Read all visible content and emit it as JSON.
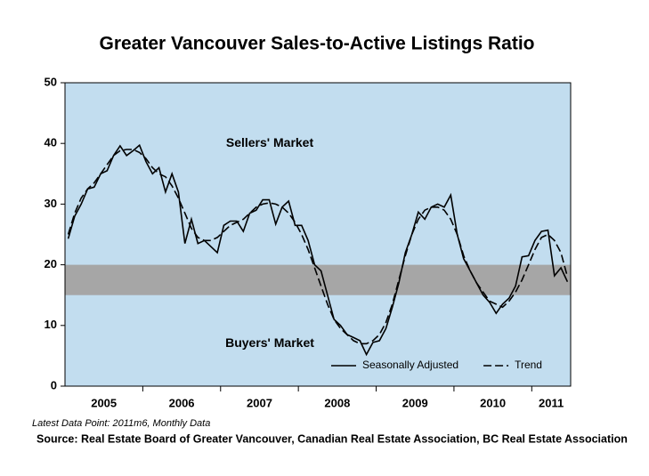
{
  "chart_data": {
    "type": "line",
    "title": "Greater Vancouver Sales-to-Active Listings Ratio",
    "categories": [
      null,
      null,
      null,
      null,
      null,
      null,
      "2005",
      null,
      null,
      null,
      null,
      null,
      null,
      null,
      null,
      null,
      null,
      null,
      "2006",
      null,
      null,
      null,
      null,
      null,
      null,
      null,
      null,
      null,
      null,
      null,
      "2007",
      null,
      null,
      null,
      null,
      null,
      null,
      null,
      null,
      null,
      null,
      null,
      "2008",
      null,
      null,
      null,
      null,
      null,
      null,
      null,
      null,
      null,
      null,
      null,
      "2009",
      null,
      null,
      null,
      null,
      null,
      null,
      null,
      null,
      null,
      null,
      null,
      "2010",
      null,
      null,
      null,
      null,
      null,
      null,
      null,
      null,
      "2011",
      null,
      null
    ],
    "series": [
      {
        "name": "Seasonally Adjusted",
        "color": "#000000",
        "dash": "solid",
        "values": [
          24.3,
          28,
          30,
          32.5,
          32.8,
          35,
          35.5,
          38,
          39.6,
          38,
          38.8,
          39.7,
          37,
          35,
          36,
          32,
          35,
          32,
          23.5,
          27.5,
          23.5,
          24,
          23,
          22,
          26.5,
          27.2,
          27.2,
          25.5,
          28.5,
          29,
          30.7,
          30.7,
          26.7,
          29.5,
          30.5,
          26.5,
          26.5,
          24,
          20,
          19,
          15,
          11,
          10,
          8.5,
          8,
          7.5,
          5.2,
          7.2,
          7.5,
          9.5,
          13,
          17,
          22,
          25,
          28.7,
          27.5,
          29.5,
          30,
          29.5,
          31.5,
          25,
          21,
          19,
          17,
          15,
          13.8,
          12,
          13.5,
          14.5,
          16.5,
          21.3,
          21.5,
          24,
          25.5,
          25.7,
          18.2,
          19.5,
          17.2
        ]
      },
      {
        "name": "Trend",
        "color": "#000000",
        "dash": "dashed",
        "values": [
          25,
          28.5,
          31,
          32.5,
          33.5,
          35,
          36.5,
          38,
          38.8,
          39,
          39,
          38.5,
          37.5,
          36,
          35,
          34.5,
          33,
          31,
          28.5,
          26,
          24.5,
          24,
          24,
          24.5,
          25.5,
          26.5,
          27,
          27.5,
          28.5,
          29.5,
          30,
          30.2,
          30,
          29.5,
          28.5,
          27,
          25,
          22.5,
          19.5,
          16.5,
          13.5,
          11,
          9.5,
          8.5,
          7.5,
          7,
          7,
          7.5,
          8.5,
          10.5,
          13.5,
          17.5,
          21.5,
          25,
          27.5,
          29,
          29.5,
          29.5,
          29,
          27.5,
          25,
          21.5,
          19,
          17,
          15.5,
          14,
          13.5,
          13,
          14,
          15.5,
          17.5,
          20,
          22.5,
          24.5,
          25,
          24,
          22,
          18
        ]
      }
    ],
    "ylim": [
      0,
      50
    ],
    "yticks": [
      0,
      10,
      20,
      30,
      40,
      50
    ],
    "band": [
      15,
      20
    ],
    "band_color": "#a6a6a6",
    "plot_background": "#c2ddef",
    "annotations": [
      {
        "text": "Sellers' Market",
        "y": 40
      },
      {
        "text": "Buyers' Market",
        "y": 7
      }
    ],
    "legend": "lower right",
    "note": "Latest Data Point: 2011m6, Monthly Data",
    "source": "Source: Real Estate Board of Greater Vancouver, Canadian Real Estate Association, BC Real Estate Association"
  }
}
